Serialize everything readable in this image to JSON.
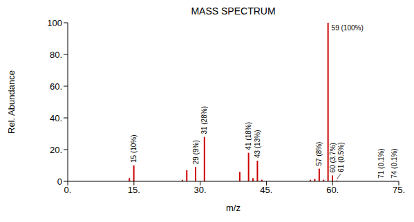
{
  "chart_data": {
    "type": "bar",
    "title": "MASS SPECTRUM",
    "x_label": "m/z",
    "y_label": "Rel. Abundance",
    "x": [
      14,
      15,
      26,
      27,
      29,
      31,
      39,
      41,
      42,
      43,
      44,
      55,
      56,
      57,
      58,
      59,
      60,
      61,
      71,
      74
    ],
    "values": [
      2,
      10,
      1,
      7,
      9,
      28,
      6,
      18,
      2,
      13,
      1,
      1,
      1.5,
      8,
      1,
      100,
      3.7,
      0.5,
      0.1,
      0.1
    ],
    "value_labels": [
      null,
      "15 (10%)",
      null,
      null,
      "29 (9%)",
      "31 (28%)",
      null,
      "41 (18%)",
      null,
      "43 (13%)",
      null,
      null,
      null,
      "57 (8%)",
      null,
      "59 (100%)",
      "60 (3.7%)",
      "61 (0.5%)",
      "71 (0.1%)",
      "74 (0.1%)"
    ],
    "color": "#cc0000",
    "xlim": [
      0,
      75
    ],
    "xticks": [
      {
        "value": 0,
        "label": "0."
      },
      {
        "value": 15,
        "label": "15."
      },
      {
        "value": 30,
        "label": "30."
      },
      {
        "value": 45,
        "label": "45."
      },
      {
        "value": 60,
        "label": "60."
      },
      {
        "value": 75,
        "label": "75."
      }
    ],
    "ylim": [
      0,
      100
    ],
    "yticks": [
      0,
      {
        "value": 20,
        "label": "20."
      },
      {
        "value": 40,
        "label": "40."
      },
      {
        "value": 60,
        "label": "60."
      },
      {
        "value": 80,
        "label": "80."
      },
      100
    ],
    "grid": false,
    "data_labels": true
  }
}
